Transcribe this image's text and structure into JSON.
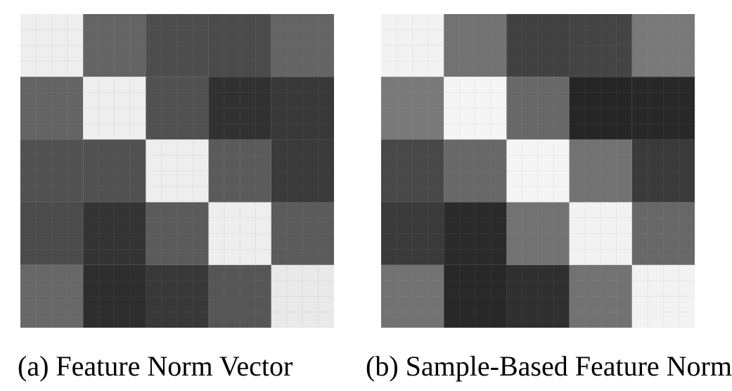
{
  "chart_data": [
    {
      "type": "heatmap",
      "caption": "(a) Feature Norm Vector",
      "color_scale": [
        "#111111",
        "#f7f7f7"
      ],
      "value_range": [
        0,
        1
      ],
      "row_blocks": 5,
      "col_blocks": 5,
      "values": [
        [
          0.96,
          0.36,
          0.26,
          0.25,
          0.36
        ],
        [
          0.36,
          0.96,
          0.28,
          0.14,
          0.17
        ],
        [
          0.28,
          0.28,
          0.96,
          0.32,
          0.18
        ],
        [
          0.25,
          0.15,
          0.32,
          0.96,
          0.32
        ],
        [
          0.38,
          0.12,
          0.17,
          0.3,
          0.94
        ]
      ]
    },
    {
      "type": "heatmap",
      "caption": "(b) Sample-Based Feature Norm",
      "color_scale": [
        "#111111",
        "#f7f7f7"
      ],
      "value_range": [
        0,
        1
      ],
      "row_blocks": 5,
      "col_blocks": 5,
      "values": [
        [
          0.98,
          0.42,
          0.21,
          0.22,
          0.45
        ],
        [
          0.45,
          0.99,
          0.38,
          0.09,
          0.1
        ],
        [
          0.24,
          0.38,
          0.99,
          0.42,
          0.18
        ],
        [
          0.18,
          0.11,
          0.42,
          0.98,
          0.38
        ],
        [
          0.42,
          0.1,
          0.13,
          0.42,
          0.98
        ]
      ]
    }
  ]
}
